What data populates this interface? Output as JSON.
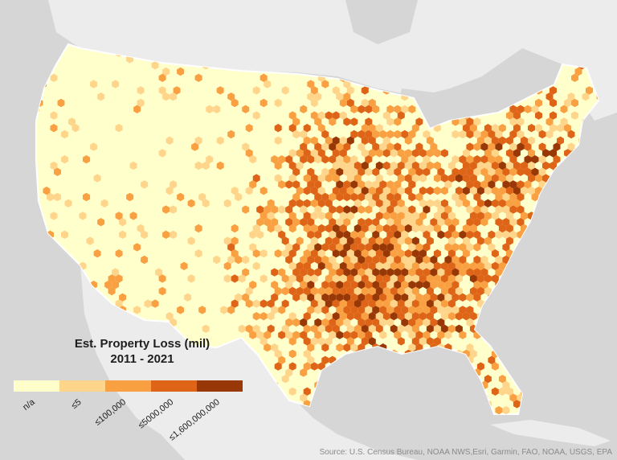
{
  "legend": {
    "title_line1": "Est. Property Loss (mil)",
    "title_line2": "2011 - 2021",
    "classes": [
      {
        "label": "n/a",
        "color": "#ffffcc"
      },
      {
        "label": "≤5",
        "color": "#fed58b"
      },
      {
        "label": "≤100,000",
        "color": "#f9a042"
      },
      {
        "label": "≤5000,000",
        "color": "#de6417"
      },
      {
        "label": "≤1,600,000,000",
        "color": "#983806"
      }
    ]
  },
  "attribution": "Source: U.S. Census Bureau, NOAA NWS,Esri, Garmin, FAO, NOAA, USGS, EPA",
  "colors": {
    "land": "#ededed",
    "water": "#d6d6d6",
    "hex_base": "#ffffcc"
  }
}
